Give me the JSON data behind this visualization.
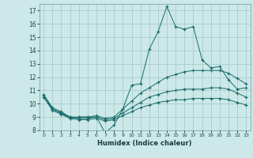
{
  "xlabel": "Humidex (Indice chaleur)",
  "bg_color": "#cce8e8",
  "grid_color": "#aacccc",
  "line_color": "#1a6b6b",
  "marker": "+",
  "xlim": [
    -0.5,
    23.5
  ],
  "ylim": [
    8,
    17.5
  ],
  "xticks": [
    0,
    1,
    2,
    3,
    4,
    5,
    6,
    7,
    8,
    9,
    10,
    11,
    12,
    13,
    14,
    15,
    16,
    17,
    18,
    19,
    20,
    21,
    22,
    23
  ],
  "yticks": [
    8,
    9,
    10,
    11,
    12,
    13,
    14,
    15,
    16,
    17
  ],
  "series": [
    [
      10.7,
      9.6,
      9.3,
      8.9,
      9.0,
      9.0,
      9.0,
      7.8,
      8.4,
      9.6,
      11.4,
      11.5,
      14.1,
      15.4,
      17.3,
      15.8,
      15.6,
      15.8,
      13.3,
      12.7,
      12.8,
      11.8,
      11.1,
      11.2
    ],
    [
      10.7,
      9.7,
      9.4,
      9.0,
      9.0,
      9.0,
      9.1,
      8.9,
      9.0,
      9.6,
      10.2,
      10.8,
      11.2,
      11.6,
      12.0,
      12.2,
      12.4,
      12.5,
      12.5,
      12.5,
      12.5,
      12.3,
      11.9,
      11.5
    ],
    [
      10.5,
      9.6,
      9.3,
      9.0,
      8.9,
      8.9,
      9.0,
      8.8,
      8.9,
      9.3,
      9.7,
      10.1,
      10.5,
      10.7,
      10.9,
      11.0,
      11.1,
      11.1,
      11.1,
      11.2,
      11.2,
      11.1,
      10.8,
      10.5
    ],
    [
      10.5,
      9.5,
      9.2,
      8.9,
      8.8,
      8.8,
      8.9,
      8.7,
      8.8,
      9.1,
      9.4,
      9.7,
      9.9,
      10.1,
      10.2,
      10.3,
      10.3,
      10.4,
      10.4,
      10.4,
      10.4,
      10.3,
      10.1,
      9.9
    ]
  ]
}
